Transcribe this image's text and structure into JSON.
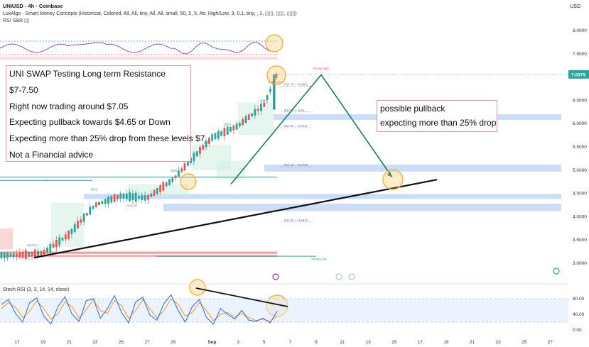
{
  "header": {
    "symbol_line": "UNIUSD · 4h · Coinbase",
    "indicator_line": "LuxAlgo - Smart Money Concepts (Historical, Colored, All, All, tiny, All, All, small, 50, 5, 5, Atr, High/Low, 3, 0.1, tiny, , 1, ▯▯▯, ▯▯▯, ▯▯▯)",
    "rsi_line": "RSI S&R ▯▯",
    "currency": "USD"
  },
  "annotation_main": [
    "UNI SWAP Testing Long term Resistance",
    "$7-7.50",
    "Right now trading around $7.05",
    "Expecting pullback towards $4.65 or Down",
    "Expecting more than 25% drop from these levels $7",
    "Not a Financial advice"
  ],
  "annotation_side": [
    "possible pullback",
    "expecting more than 25% drop"
  ],
  "stoch_label": "Stoch RSI (3, 3, 14, 14, close)",
  "colors": {
    "bull": "#26a69a",
    "bear": "#ef5350",
    "zone": "#bcd0f5",
    "projection": "#1b7d58",
    "trendline": "#111111",
    "highlight": "#f5b335",
    "price_tag": "#26a69a",
    "stoch_k": "#2962ff",
    "stoch_d": "#ff9800",
    "rsi_line": "#7e57c2"
  },
  "chart_data": {
    "type": "line",
    "title": "UNIUSD · 4h · Coinbase",
    "price_axis": {
      "ticks": [
        "8.0000",
        "7.5000",
        "7.0000",
        "6.5000",
        "6.0000",
        "5.5000",
        "5.0000",
        "4.5000",
        "4.0000",
        "3.5000",
        "3.0000"
      ],
      "ylim": [
        2.9,
        8.1
      ],
      "current_price": "7.0579"
    },
    "time_axis": {
      "ticks": [
        "17",
        "19",
        "21",
        "23",
        "25",
        "27",
        "29",
        "Sep",
        "3",
        "5",
        "7",
        "9",
        "11",
        "13",
        "15",
        "17",
        "19",
        "21",
        "23",
        "25",
        "27"
      ]
    },
    "series": [
      {
        "name": "UNIUSD",
        "x": [
          "17",
          "19",
          "21",
          "23",
          "25",
          "27",
          "29",
          "Sep",
          "3",
          "5",
          "6"
        ],
        "values": [
          3.17,
          3.22,
          3.62,
          4.25,
          4.45,
          4.4,
          4.8,
          5.7,
          5.95,
          6.4,
          7.06
        ]
      },
      {
        "name": "Projection",
        "x": [
          "6",
          "9",
          "14"
        ],
        "values": [
          4.7,
          7.05,
          4.85
        ]
      }
    ],
    "trendline": {
      "x": [
        "19",
        "18"
      ],
      "values": [
        3.15,
        4.75
      ]
    },
    "zones": [
      {
        "from": 6.08,
        "to": 6.2
      },
      {
        "from": 4.97,
        "to": 5.12
      },
      {
        "from": 4.38,
        "to": 4.49
      },
      {
        "from": 4.12,
        "to": 4.28
      }
    ],
    "structure_labels": [
      "Strong High",
      "Weak High",
      "Strong Low",
      "RSI 70 — 6.8061",
      "RSI 50 — 6.25",
      "RSI 50 — 5.9115",
      "RSI 40 — 5.0725",
      "RSI 30 — 3.8870",
      "BOS",
      "BOS",
      "BOS",
      "BOS",
      "BOS",
      "CHoCH",
      "CHoCH"
    ],
    "stoch_rsi": {
      "ticks": [
        "80.00",
        "40.00",
        "0.00"
      ],
      "ylim": [
        0,
        100
      ],
      "k": [
        65,
        78,
        42,
        20,
        70,
        82,
        35,
        15,
        60,
        85,
        40,
        22,
        75,
        80,
        30,
        55,
        88,
        45,
        18,
        72,
        84,
        38,
        25,
        68,
        90,
        50,
        20,
        60,
        78,
        32,
        15,
        55,
        40,
        28,
        50,
        25,
        22,
        30,
        18,
        48
      ],
      "d": [
        55,
        70,
        58,
        32,
        48,
        75,
        55,
        28,
        42,
        72,
        60,
        30,
        52,
        78,
        50,
        42,
        76,
        62,
        30,
        50,
        78,
        55,
        30,
        50,
        80,
        66,
        35,
        45,
        70,
        50,
        24,
        40,
        45,
        33,
        42,
        32,
        24,
        28,
        22,
        35
      ]
    }
  }
}
